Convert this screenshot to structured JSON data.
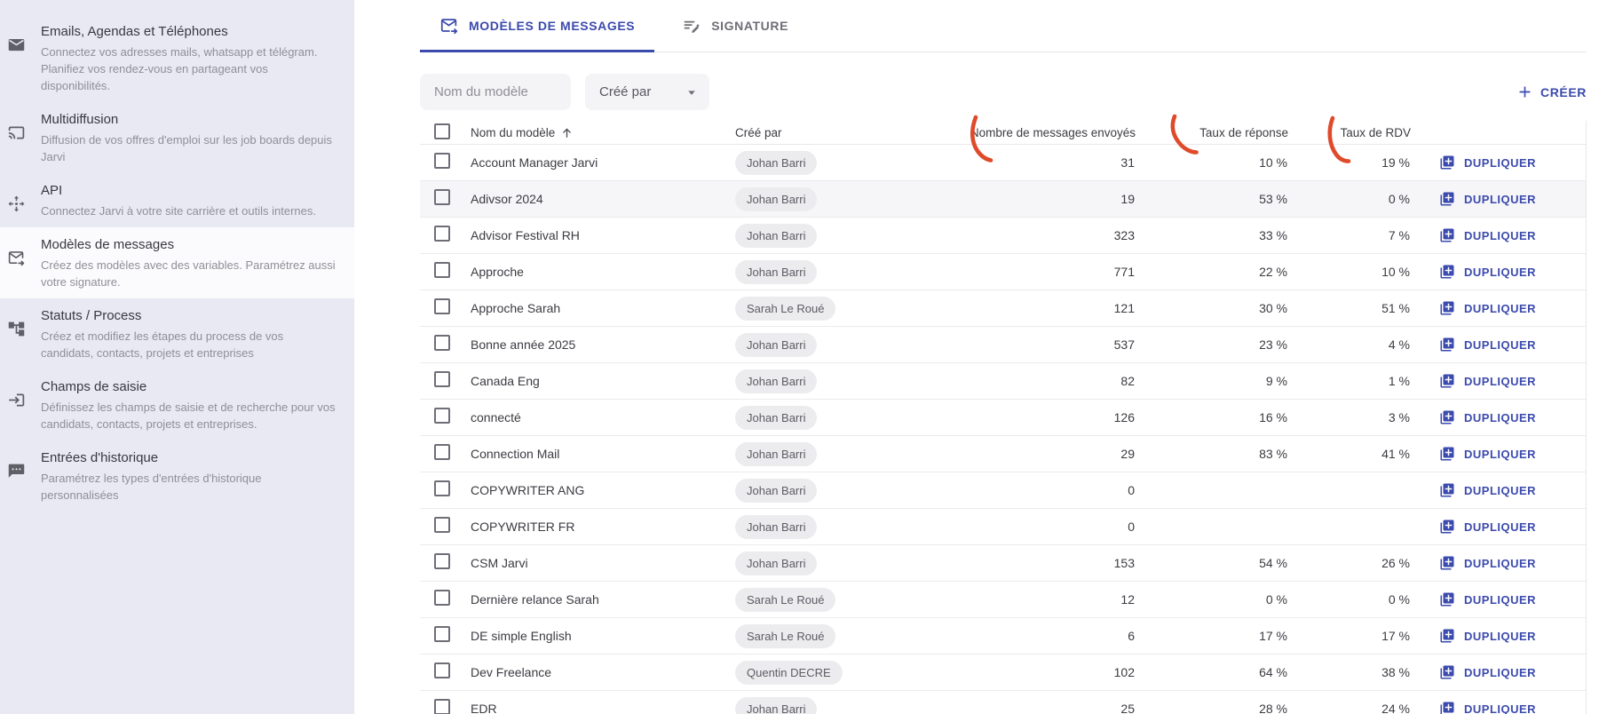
{
  "colors": {
    "accent": "#3b4aad",
    "annotation": "#df4a2b",
    "sidebar_bg": "#e9e9f4"
  },
  "sidebar": {
    "items": [
      {
        "id": "emails-agendas-telephones",
        "icon": "mail-icon",
        "selected": false,
        "title": "Emails, Agendas et Téléphones",
        "description": "Connectez vos adresses mails, whatsapp et télégram. Planifiez vos rendez-vous en partageant vos disponibilités."
      },
      {
        "id": "multidiffusion",
        "icon": "cast-icon",
        "selected": false,
        "title": "Multidiffusion",
        "description": "Diffusion de vos offres d'emploi sur les job boards depuis Jarvi"
      },
      {
        "id": "api",
        "icon": "api-icon",
        "selected": false,
        "title": "API",
        "description": "Connectez Jarvi à votre site carrière et outils internes."
      },
      {
        "id": "modeles-de-messages",
        "icon": "mail-arrow-icon",
        "selected": true,
        "title": "Modèles de messages",
        "description": "Créez des modèles avec des variables. Paramétrez aussi votre signature."
      },
      {
        "id": "statuts-process",
        "icon": "process-tree-icon",
        "selected": false,
        "title": "Statuts / Process",
        "description": "Créez et modifiez les étapes du process de vos candidats, contacts, projets et entreprises"
      },
      {
        "id": "champs-de-saisie",
        "icon": "input-field-icon",
        "selected": false,
        "title": "Champs de saisie",
        "description": "Définissez les champs de saisie et de recherche pour vos candidats, contacts, projets et entreprises."
      },
      {
        "id": "entrees-historique",
        "icon": "history-bubble-icon",
        "selected": false,
        "title": "Entrées d'historique",
        "description": "Paramétrez les types d'entrées d'historique personnalisées"
      }
    ]
  },
  "tabs": [
    {
      "id": "modeles",
      "icon": "mail-arrow-icon",
      "label": "MODÈLES DE MESSAGES",
      "active": true
    },
    {
      "id": "signature",
      "icon": "signature-icon",
      "label": "SIGNATURE",
      "active": false
    }
  ],
  "filters": {
    "search_placeholder": "Nom du modèle",
    "created_by": {
      "label": "Créé par"
    }
  },
  "create_button": {
    "label": "CRÉER"
  },
  "table": {
    "headers": {
      "name": "Nom du modèle",
      "created_by": "Créé par",
      "sent": "Nombre de messages envoyés",
      "response": "Taux de réponse",
      "rdv": "Taux de RDV"
    },
    "sort": {
      "column": "name",
      "direction": "asc"
    },
    "duplicate_label": "DUPLIQUER",
    "rows": [
      {
        "name": "Account Manager Jarvi",
        "created_by": "Johan Barri",
        "sent": "31",
        "response": "10 %",
        "rdv": "19 %"
      },
      {
        "name": "Adivsor 2024",
        "created_by": "Johan Barri",
        "sent": "19",
        "response": "53 %",
        "rdv": "0 %",
        "highlighted": true
      },
      {
        "name": "Advisor Festival RH",
        "created_by": "Johan Barri",
        "sent": "323",
        "response": "33 %",
        "rdv": "7 %"
      },
      {
        "name": "Approche",
        "created_by": "Johan Barri",
        "sent": "771",
        "response": "22 %",
        "rdv": "10 %"
      },
      {
        "name": "Approche Sarah",
        "created_by": "Sarah Le Roué",
        "sent": "121",
        "response": "30 %",
        "rdv": "51 %"
      },
      {
        "name": "Bonne année 2025",
        "created_by": "Johan Barri",
        "sent": "537",
        "response": "23 %",
        "rdv": "4 %"
      },
      {
        "name": "Canada Eng",
        "created_by": "Johan Barri",
        "sent": "82",
        "response": "9 %",
        "rdv": "1 %"
      },
      {
        "name": "connecté",
        "created_by": "Johan Barri",
        "sent": "126",
        "response": "16 %",
        "rdv": "3 %"
      },
      {
        "name": "Connection Mail",
        "created_by": "Johan Barri",
        "sent": "29",
        "response": "83 %",
        "rdv": "41 %"
      },
      {
        "name": "COPYWRITER ANG",
        "created_by": "Johan Barri",
        "sent": "0",
        "response": "",
        "rdv": ""
      },
      {
        "name": "COPYWRITER FR",
        "created_by": "Johan Barri",
        "sent": "0",
        "response": "",
        "rdv": ""
      },
      {
        "name": "CSM Jarvi",
        "created_by": "Johan Barri",
        "sent": "153",
        "response": "54 %",
        "rdv": "26 %"
      },
      {
        "name": "Dernière relance Sarah",
        "created_by": "Sarah Le Roué",
        "sent": "12",
        "response": "0 %",
        "rdv": "0 %"
      },
      {
        "name": "DE simple English",
        "created_by": "Sarah Le Roué",
        "sent": "6",
        "response": "17 %",
        "rdv": "17 %"
      },
      {
        "name": "Dev Freelance",
        "created_by": "Quentin DECRE",
        "sent": "102",
        "response": "64 %",
        "rdv": "38 %"
      },
      {
        "name": "EDR",
        "created_by": "Johan Barri",
        "sent": "25",
        "response": "28 %",
        "rdv": "24 %"
      }
    ]
  }
}
